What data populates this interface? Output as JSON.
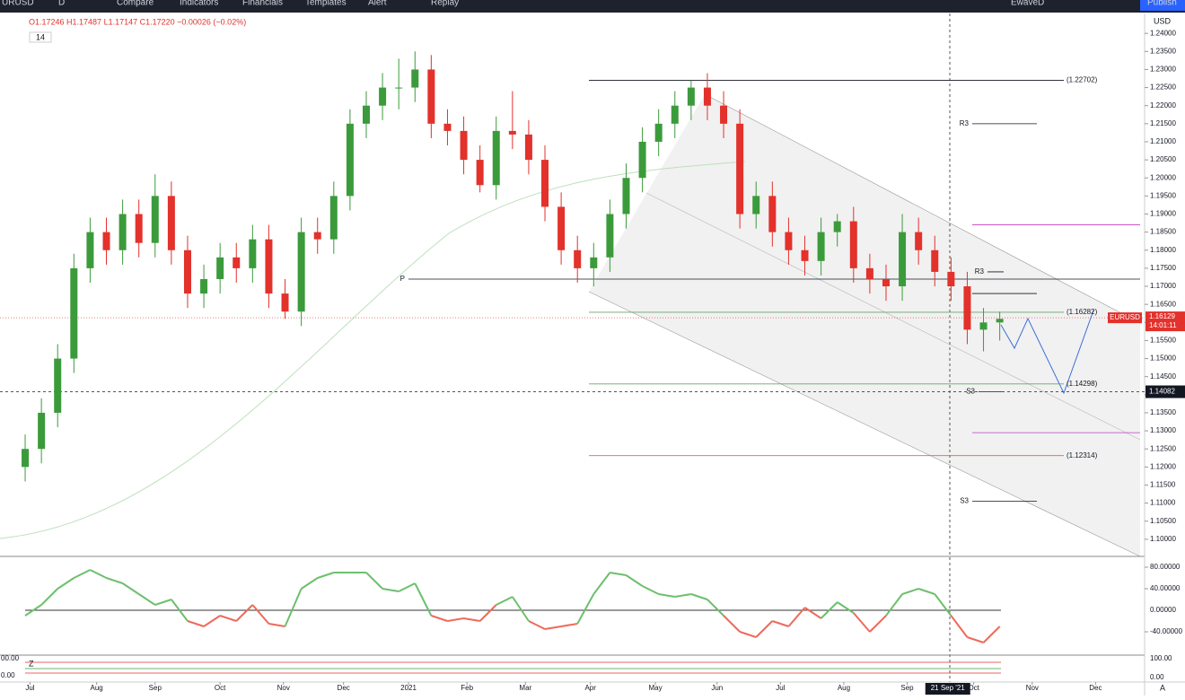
{
  "toolbar": {
    "symbol": "URUSD",
    "interval": "D",
    "items": [
      "Compare",
      "Indicators",
      "Financials",
      "Templates",
      "Alert",
      "Replay"
    ],
    "layout": "EwaveD",
    "publish": "Publish"
  },
  "legend": {
    "ohlc": "O1.17246 H1.17487 L1.17147 C1.17220 −0.00026 (−0.02%)",
    "badge": "14",
    "currency": "USD"
  },
  "chart_data": {
    "type": "candlestick",
    "candles": [
      [
        1.12,
        1.129,
        1.116,
        1.125
      ],
      [
        1.125,
        1.139,
        1.121,
        1.135
      ],
      [
        1.135,
        1.154,
        1.131,
        1.15
      ],
      [
        1.15,
        1.179,
        1.146,
        1.175
      ],
      [
        1.175,
        1.189,
        1.171,
        1.185
      ],
      [
        1.185,
        1.189,
        1.176,
        1.18
      ],
      [
        1.18,
        1.194,
        1.176,
        1.19
      ],
      [
        1.19,
        1.194,
        1.178,
        1.182
      ],
      [
        1.182,
        1.201,
        1.178,
        1.195
      ],
      [
        1.195,
        1.199,
        1.176,
        1.18
      ],
      [
        1.18,
        1.184,
        1.164,
        1.168
      ],
      [
        1.168,
        1.176,
        1.164,
        1.172
      ],
      [
        1.172,
        1.182,
        1.168,
        1.178
      ],
      [
        1.178,
        1.182,
        1.171,
        1.175
      ],
      [
        1.175,
        1.187,
        1.171,
        1.183
      ],
      [
        1.183,
        1.187,
        1.164,
        1.168
      ],
      [
        1.168,
        1.172,
        1.161,
        1.163
      ],
      [
        1.163,
        1.189,
        1.159,
        1.185
      ],
      [
        1.185,
        1.189,
        1.179,
        1.183
      ],
      [
        1.183,
        1.199,
        1.179,
        1.195
      ],
      [
        1.195,
        1.219,
        1.191,
        1.215
      ],
      [
        1.215,
        1.224,
        1.211,
        1.22
      ],
      [
        1.22,
        1.229,
        1.216,
        1.225
      ],
      [
        1.225,
        1.233,
        1.219,
        1.225
      ],
      [
        1.225,
        1.235,
        1.221,
        1.23
      ],
      [
        1.23,
        1.234,
        1.211,
        1.215
      ],
      [
        1.215,
        1.219,
        1.209,
        1.213
      ],
      [
        1.213,
        1.217,
        1.201,
        1.205
      ],
      [
        1.205,
        1.209,
        1.196,
        1.198
      ],
      [
        1.198,
        1.217,
        1.194,
        1.213
      ],
      [
        1.213,
        1.224,
        1.208,
        1.212
      ],
      [
        1.212,
        1.216,
        1.201,
        1.205
      ],
      [
        1.205,
        1.209,
        1.188,
        1.192
      ],
      [
        1.192,
        1.196,
        1.176,
        1.18
      ],
      [
        1.18,
        1.184,
        1.171,
        1.175
      ],
      [
        1.175,
        1.182,
        1.17,
        1.178
      ],
      [
        1.178,
        1.194,
        1.174,
        1.19
      ],
      [
        1.19,
        1.204,
        1.186,
        1.2
      ],
      [
        1.2,
        1.214,
        1.196,
        1.21
      ],
      [
        1.21,
        1.219,
        1.206,
        1.215
      ],
      [
        1.215,
        1.224,
        1.211,
        1.22
      ],
      [
        1.22,
        1.227,
        1.216,
        1.225
      ],
      [
        1.225,
        1.229,
        1.216,
        1.22
      ],
      [
        1.22,
        1.224,
        1.211,
        1.215
      ],
      [
        1.215,
        1.219,
        1.186,
        1.19
      ],
      [
        1.19,
        1.199,
        1.186,
        1.195
      ],
      [
        1.195,
        1.199,
        1.181,
        1.185
      ],
      [
        1.185,
        1.189,
        1.176,
        1.18
      ],
      [
        1.18,
        1.184,
        1.173,
        1.177
      ],
      [
        1.177,
        1.189,
        1.173,
        1.185
      ],
      [
        1.185,
        1.19,
        1.181,
        1.188
      ],
      [
        1.188,
        1.192,
        1.171,
        1.175
      ],
      [
        1.175,
        1.179,
        1.168,
        1.172
      ],
      [
        1.172,
        1.176,
        1.166,
        1.17
      ],
      [
        1.17,
        1.19,
        1.166,
        1.185
      ],
      [
        1.185,
        1.189,
        1.176,
        1.18
      ],
      [
        1.18,
        1.184,
        1.17,
        1.174
      ],
      [
        1.174,
        1.178,
        1.166,
        1.17
      ],
      [
        1.17,
        1.174,
        1.154,
        1.158
      ],
      [
        1.158,
        1.164,
        1.152,
        1.16
      ],
      [
        1.16,
        1.163,
        1.155,
        1.161
      ]
    ],
    "up_color": "#3b9b3b",
    "down_color": "#e3312b",
    "xlim": [
      -0.4,
      68.2
    ],
    "xticks": [
      {
        "value": 0.3,
        "label": "Jul"
      },
      {
        "value": 4.4,
        "label": "Aug"
      },
      {
        "value": 8.0,
        "label": "Sep"
      },
      {
        "value": 12.0,
        "label": "Oct"
      },
      {
        "value": 15.9,
        "label": "Nov"
      },
      {
        "value": 19.6,
        "label": "Dec"
      },
      {
        "value": 23.6,
        "label": "2021"
      },
      {
        "value": 27.2,
        "label": "Feb"
      },
      {
        "value": 30.8,
        "label": "Mar"
      },
      {
        "value": 34.8,
        "label": "Apr"
      },
      {
        "value": 38.8,
        "label": "May"
      },
      {
        "value": 42.6,
        "label": "Jun"
      },
      {
        "value": 46.5,
        "label": "Jul"
      },
      {
        "value": 50.4,
        "label": "Aug"
      },
      {
        "value": 54.3,
        "label": "Sep"
      },
      {
        "value": 58.4,
        "label": "Oct"
      },
      {
        "value": 62.0,
        "label": "Nov"
      },
      {
        "value": 65.9,
        "label": "Dec"
      }
    ],
    "ylim": [
      1.09525,
      1.24551
    ],
    "yticks": [
      {
        "value": 1.1,
        "label": "1.10000"
      },
      {
        "value": 1.105,
        "label": "1.10500"
      },
      {
        "value": 1.11,
        "label": "1.11000"
      },
      {
        "value": 1.115,
        "label": "1.11500"
      },
      {
        "value": 1.12,
        "label": "1.12000"
      },
      {
        "value": 1.125,
        "label": "1.12500"
      },
      {
        "value": 1.13,
        "label": "1.13000"
      },
      {
        "value": 1.135,
        "label": "1.13500"
      },
      {
        "value": 1.14,
        "label": "1.14000"
      },
      {
        "value": 1.145,
        "label": "1.14500"
      },
      {
        "value": 1.15,
        "label": "1.15000"
      },
      {
        "value": 1.155,
        "label": "1.15500"
      },
      {
        "value": 1.16,
        "label": "1.16000"
      },
      {
        "value": 1.165,
        "label": "1.16500"
      },
      {
        "value": 1.17,
        "label": "1.17000"
      },
      {
        "value": 1.175,
        "label": "1.17500"
      },
      {
        "value": 1.18,
        "label": "1.18000"
      },
      {
        "value": 1.185,
        "label": "1.18500"
      },
      {
        "value": 1.19,
        "label": "1.19000"
      },
      {
        "value": 1.195,
        "label": "1.19500"
      },
      {
        "value": 1.2,
        "label": "1.20000"
      },
      {
        "value": 1.205,
        "label": "1.20500"
      },
      {
        "value": 1.21,
        "label": "1.21000"
      },
      {
        "value": 1.215,
        "label": "1.21500"
      },
      {
        "value": 1.22,
        "label": "1.22000"
      },
      {
        "value": 1.225,
        "label": "1.22500"
      },
      {
        "value": 1.23,
        "label": "1.23000"
      },
      {
        "value": 1.235,
        "label": "1.23500"
      },
      {
        "value": 1.24,
        "label": "1.24000"
      }
    ],
    "levels": [
      {
        "value": 1.22702,
        "label": "(1.22702)",
        "color": "#131722"
      },
      {
        "value": 1.215,
        "label": "R3",
        "color": "#131722"
      },
      {
        "value": 1.187,
        "color": "#c040c0"
      },
      {
        "value": 1.174,
        "label": "R3",
        "color": "#131722"
      },
      {
        "value": 1.172,
        "label": "P",
        "color": "#131722"
      },
      {
        "value": 1.168,
        "color": "#131722"
      },
      {
        "value": 1.16282,
        "label": "(1.16282)",
        "color": "#6aa46a"
      },
      {
        "value": 1.14298,
        "label": "(1.14298)",
        "color": "#6aa46a"
      },
      {
        "value": 1.1408,
        "label": "S3",
        "color": "#131722"
      },
      {
        "value": 1.1295,
        "color": "#c040c0"
      },
      {
        "value": 1.12314,
        "label": "(1.12314)",
        "color": "#e06060"
      },
      {
        "value": 1.1105,
        "label": "S3",
        "color": "#131722"
      }
    ],
    "last_price": {
      "name": "EURUSD",
      "value": 1.16129,
      "label": "1.16129",
      "countdown": "14:01:11"
    },
    "crosshair": {
      "value": 1.14082,
      "label": "1.14082",
      "date": "21 Sep '21",
      "index": 56.8
    },
    "oscillator": {
      "values": [
        -10,
        10,
        40,
        60,
        75,
        60,
        50,
        30,
        10,
        20,
        -20,
        -30,
        -10,
        -20,
        10,
        -25,
        -30,
        40,
        60,
        70,
        70,
        70,
        40,
        35,
        50,
        -10,
        -20,
        -15,
        -20,
        10,
        25,
        -20,
        -35,
        -30,
        -25,
        30,
        70,
        65,
        45,
        30,
        25,
        30,
        20,
        -10,
        -40,
        -50,
        -20,
        -30,
        5,
        -15,
        15,
        -5,
        -40,
        -10,
        30,
        40,
        30,
        -10,
        -50,
        -60,
        -30
      ],
      "up_color": "#6dbf6d",
      "down_color": "#ee6a5a",
      "ylim": [
        -83.33,
        100
      ],
      "yticks": [
        {
          "value": 80,
          "label": "80.00000"
        },
        {
          "value": 40,
          "label": "40.00000"
        },
        {
          "value": 0,
          "label": "0.00000"
        },
        {
          "value": -40,
          "label": "-40.00000"
        }
      ]
    },
    "panel3": {
      "right_labels": [
        "100.00",
        "0.00"
      ],
      "left_labels": [
        "00.00",
        "0.00"
      ],
      "tag": "Z",
      "axis_tag": "A"
    }
  }
}
